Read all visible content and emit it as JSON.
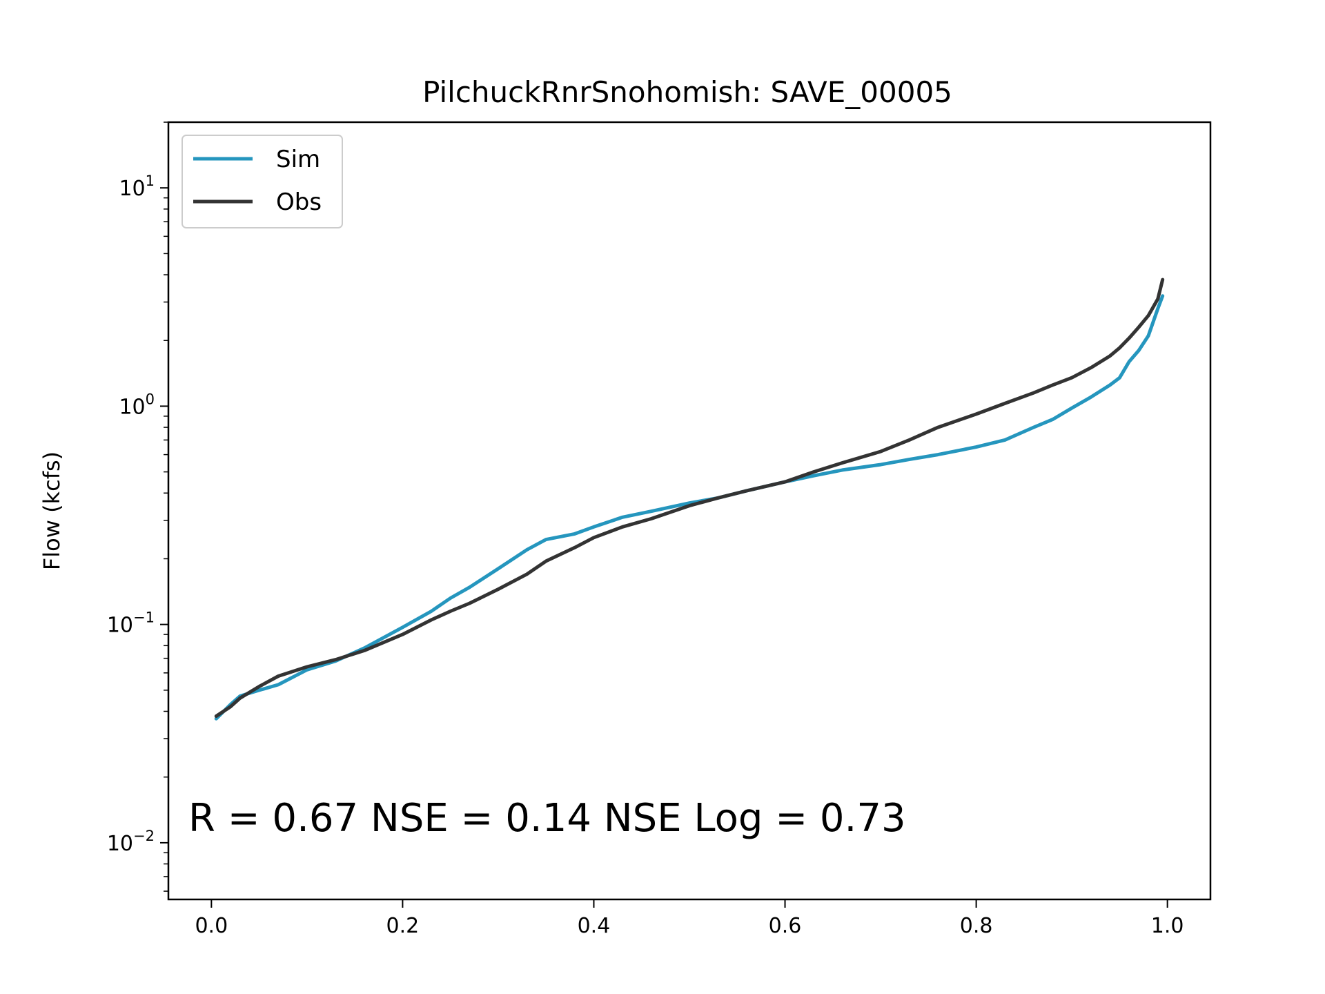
{
  "chart_data": {
    "type": "line",
    "title": "PilchuckRnrSnohomish: SAVE_00005",
    "xlabel": "",
    "ylabel": "Flow (kcfs)",
    "yscale": "log",
    "xlim": [
      -0.045,
      1.045
    ],
    "ylim": [
      0.0055,
      20
    ],
    "x_ticks": [
      0.0,
      0.2,
      0.4,
      0.6,
      0.8,
      1.0
    ],
    "x_tick_labels": [
      "0.0",
      "0.2",
      "0.4",
      "0.6",
      "0.8",
      "1.0"
    ],
    "y_ticks": [
      {
        "value": 10,
        "base": "10",
        "exp": "1"
      },
      {
        "value": 1,
        "base": "10",
        "exp": "0"
      },
      {
        "value": 0.1,
        "base": "10",
        "exp": "−1"
      },
      {
        "value": 0.01,
        "base": "10",
        "exp": "−2"
      }
    ],
    "legend": {
      "placement": "top-left"
    },
    "annotation": "R = 0.67  NSE = 0.14  NSE Log = 0.73",
    "series": [
      {
        "name": "Sim",
        "color": "#2596be",
        "x": [
          0.005,
          0.02,
          0.03,
          0.05,
          0.07,
          0.1,
          0.13,
          0.16,
          0.2,
          0.23,
          0.25,
          0.27,
          0.3,
          0.33,
          0.35,
          0.38,
          0.4,
          0.43,
          0.46,
          0.5,
          0.53,
          0.56,
          0.6,
          0.63,
          0.66,
          0.7,
          0.73,
          0.76,
          0.8,
          0.83,
          0.86,
          0.88,
          0.9,
          0.92,
          0.94,
          0.95,
          0.96,
          0.97,
          0.98,
          0.99,
          0.995
        ],
        "values": [
          0.037,
          0.043,
          0.047,
          0.05,
          0.053,
          0.062,
          0.068,
          0.078,
          0.097,
          0.115,
          0.132,
          0.148,
          0.18,
          0.22,
          0.245,
          0.26,
          0.28,
          0.31,
          0.33,
          0.36,
          0.38,
          0.41,
          0.45,
          0.48,
          0.51,
          0.54,
          0.57,
          0.6,
          0.65,
          0.7,
          0.8,
          0.87,
          0.98,
          1.1,
          1.25,
          1.35,
          1.6,
          1.8,
          2.1,
          2.8,
          3.2
        ]
      },
      {
        "name": "Obs",
        "color": "#333333",
        "x": [
          0.005,
          0.02,
          0.03,
          0.05,
          0.07,
          0.1,
          0.13,
          0.16,
          0.2,
          0.23,
          0.25,
          0.27,
          0.3,
          0.33,
          0.35,
          0.38,
          0.4,
          0.43,
          0.46,
          0.5,
          0.53,
          0.56,
          0.6,
          0.63,
          0.66,
          0.7,
          0.73,
          0.76,
          0.8,
          0.83,
          0.86,
          0.88,
          0.9,
          0.92,
          0.94,
          0.95,
          0.96,
          0.97,
          0.98,
          0.99,
          0.995
        ],
        "values": [
          0.038,
          0.042,
          0.046,
          0.052,
          0.058,
          0.064,
          0.069,
          0.076,
          0.09,
          0.105,
          0.115,
          0.125,
          0.145,
          0.17,
          0.195,
          0.225,
          0.25,
          0.28,
          0.305,
          0.35,
          0.38,
          0.41,
          0.45,
          0.5,
          0.55,
          0.62,
          0.7,
          0.8,
          0.92,
          1.03,
          1.15,
          1.25,
          1.35,
          1.5,
          1.7,
          1.85,
          2.05,
          2.3,
          2.6,
          3.1,
          3.8
        ]
      }
    ]
  }
}
